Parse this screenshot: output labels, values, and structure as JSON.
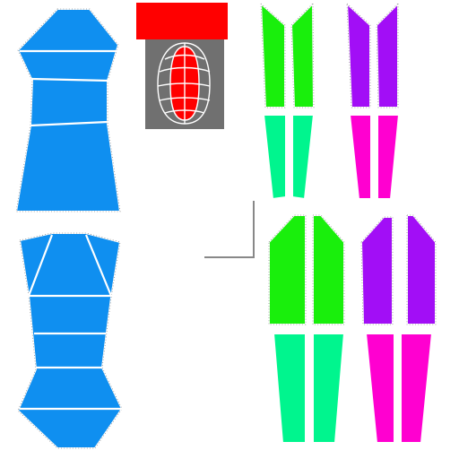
{
  "colors": {
    "background": "#ffffff",
    "torso": "#0f8ff0",
    "green": "#19ef0c",
    "mint": "#00f58e",
    "purple": "#a20ef6",
    "magenta": "#ff00d0",
    "red": "#ff0000",
    "preview_bg": "#707070",
    "outline": "#ffffff",
    "guide": "#888888"
  },
  "icons": {
    "preview": "capsule-wireframe-icon"
  }
}
